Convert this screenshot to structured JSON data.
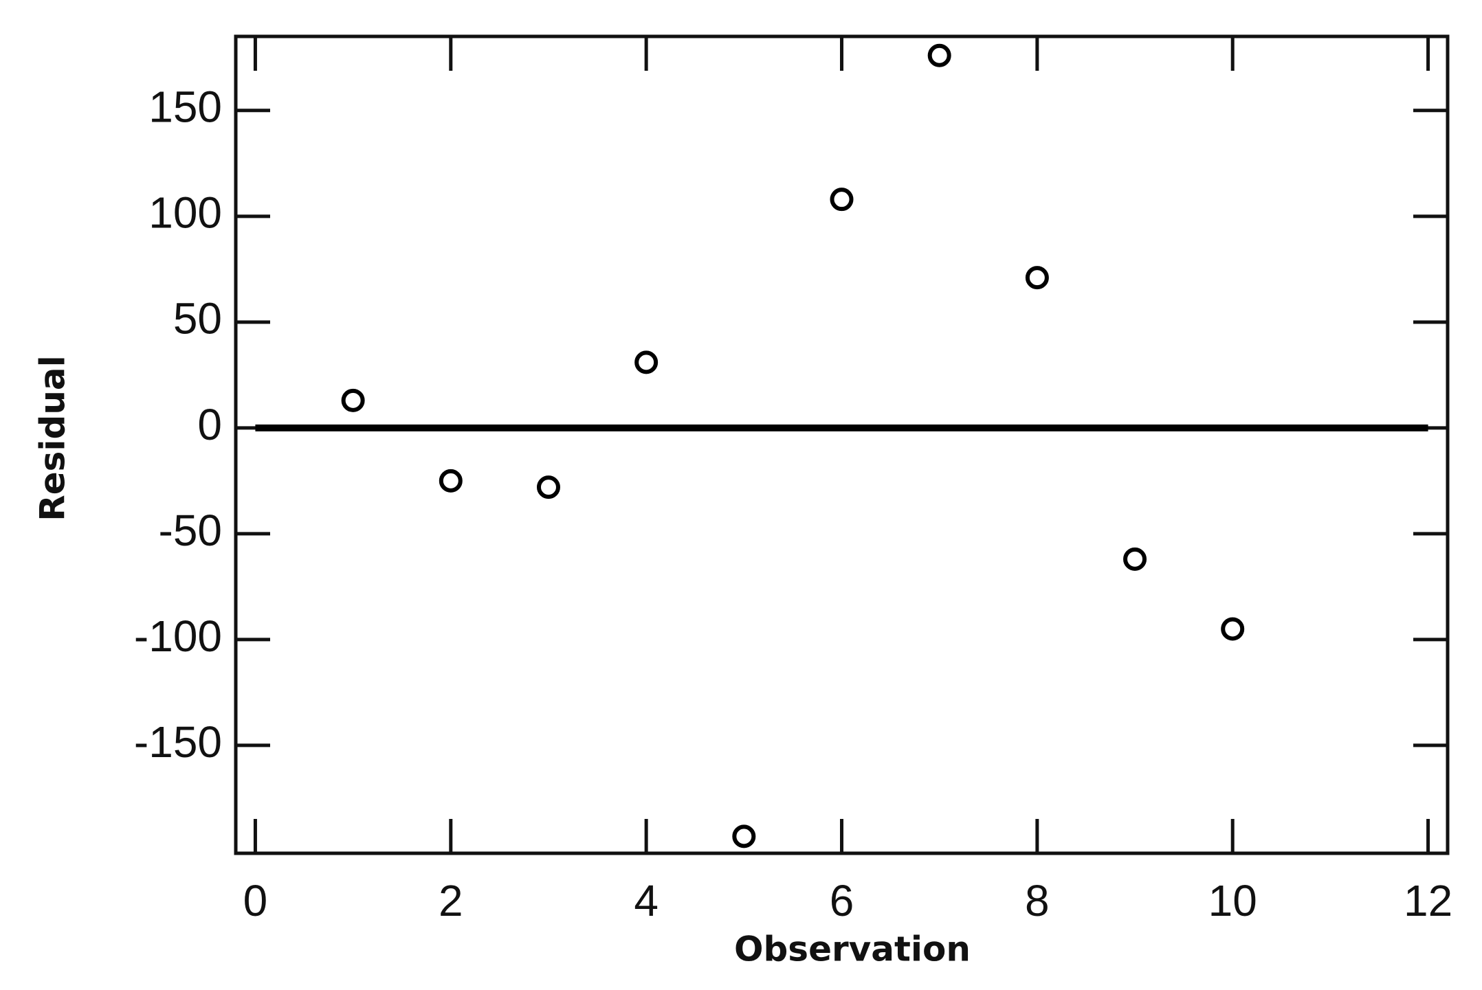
{
  "chart_data": {
    "type": "scatter",
    "x_label": "Observation",
    "y_label": "Residual",
    "x": [
      1,
      2,
      3,
      4,
      5,
      6,
      7,
      8,
      9,
      10
    ],
    "series": [
      {
        "name": "Residual",
        "color": "#000000",
        "values": [
          13,
          -25,
          -28,
          31,
          -193,
          108,
          176,
          71,
          -62,
          -95
        ]
      }
    ],
    "xlim": [
      -0.2,
      12.2
    ],
    "ylim": [
      -201,
      185
    ],
    "xticks": [
      0,
      2,
      4,
      6,
      8,
      10,
      12
    ],
    "yticks": [
      -150,
      -100,
      -50,
      0,
      50,
      100,
      150
    ],
    "hline": 0,
    "marker": "open-circle",
    "grid": false
  }
}
